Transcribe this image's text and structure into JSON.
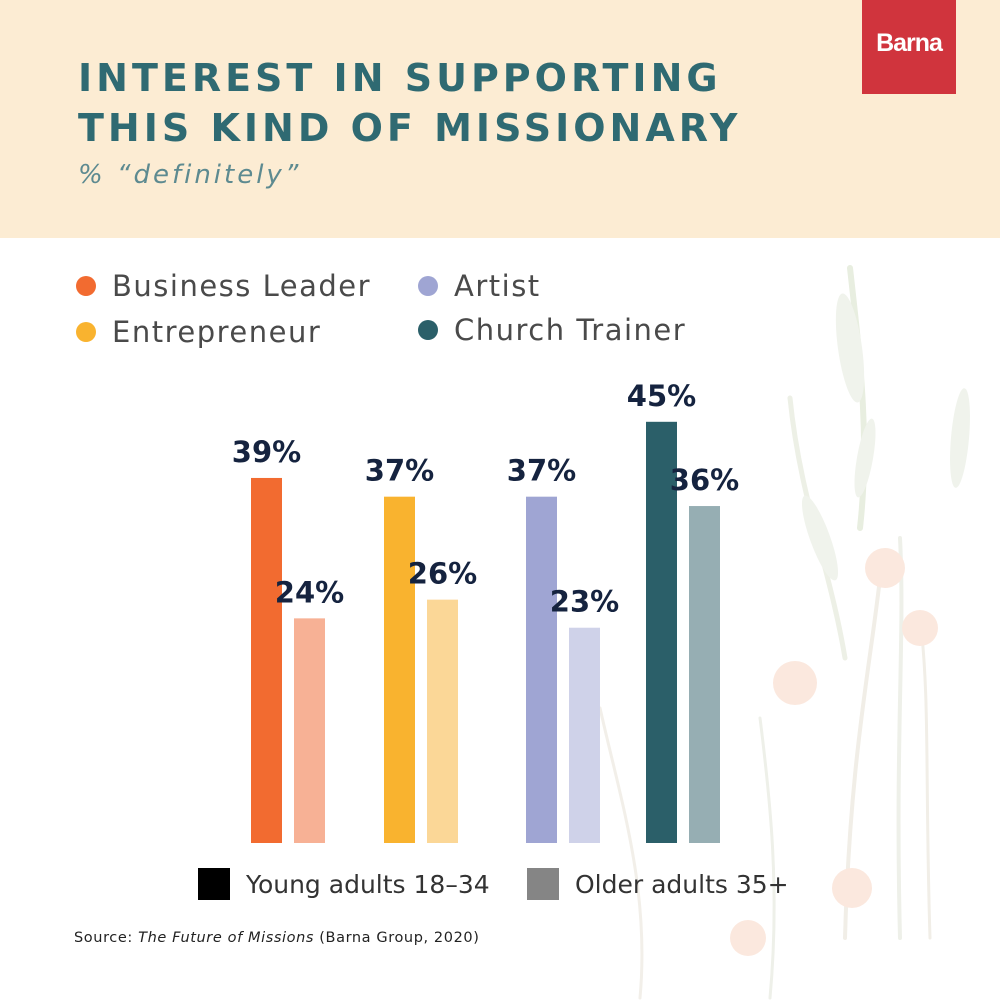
{
  "header": {
    "title_line1": "INTEREST IN SUPPORTING",
    "title_line2": "THIS KIND OF MISSIONARY",
    "subtitle": "% “definitely”",
    "logo_text": "Barna",
    "logo_color": "#d0343d"
  },
  "source": {
    "prefix": "Source: ",
    "title": "The Future of Missions",
    "suffix": " (Barna Group, 2020)"
  },
  "chart_data": {
    "type": "bar",
    "title": "INTEREST IN SUPPORTING THIS KIND OF MISSIONARY",
    "subtitle": "% “definitely”",
    "value_suffix": "%",
    "ylim": [
      0,
      45
    ],
    "grid": false,
    "categories": [
      "Business Leader",
      "Entrepreneur",
      "Artist",
      "Church Trainer"
    ],
    "category_colors": [
      {
        "young": "#f26b30",
        "older": "#f7b195"
      },
      {
        "young": "#f9b32f",
        "older": "#fbd797"
      },
      {
        "young": "#9fa5d3",
        "older": "#cfd2e9"
      },
      {
        "young": "#2b5f69",
        "older": "#96aeb3"
      }
    ],
    "series": [
      {
        "name": "Young adults 18–34",
        "values": [
          39,
          37,
          37,
          45
        ],
        "legend_color": "#000000"
      },
      {
        "name": "Older adults 35+",
        "values": [
          24,
          26,
          23,
          36
        ],
        "legend_color": "#858585"
      }
    ],
    "legend_placement": "top (categories), bottom (age groups)"
  }
}
